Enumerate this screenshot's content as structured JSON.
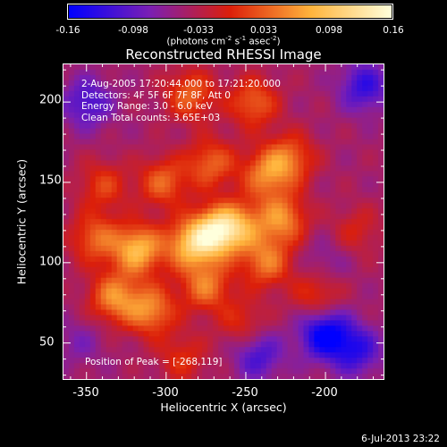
{
  "colorbar": {
    "ticks": [
      "-0.16",
      "-0.098",
      "-0.033",
      "0.033",
      "0.098",
      "0.16"
    ],
    "units_prefix": "(photons cm",
    "units_exp1": "-2",
    "units_mid": " s",
    "units_exp2": "-1",
    "units_mid2": " asec",
    "units_exp3": "-2",
    "units_suffix": ")"
  },
  "chart_data": {
    "type": "heatmap",
    "title": "Reconstructed RHESSI Image",
    "xlabel": "Heliocentric X (arcsec)",
    "ylabel": "Heliocentric Y (arcsec)",
    "xlim": [
      -365,
      -163
    ],
    "ylim": [
      27,
      224
    ],
    "xticks": [
      "-350",
      "-300",
      "-250",
      "-200"
    ],
    "xtick_values": [
      -350,
      -300,
      -250,
      -200
    ],
    "yticks": [
      "50",
      "100",
      "150",
      "200"
    ],
    "ytick_values": [
      50,
      100,
      150,
      200
    ],
    "zlim": [
      -0.16,
      0.16
    ],
    "colormap": [
      "#0000ff",
      "#7a1fb4",
      "#dc1f0a",
      "#ffb43c",
      "#ffffdc"
    ],
    "peak": [
      -268,
      119
    ],
    "sources": [
      {
        "x": -268,
        "y": 119,
        "amp": 0.16
      },
      {
        "x": -285,
        "y": 111,
        "amp": 0.12
      },
      {
        "x": -318,
        "y": 108,
        "amp": 0.13
      },
      {
        "x": -310,
        "y": 70,
        "amp": 0.1
      },
      {
        "x": -333,
        "y": 78,
        "amp": 0.1
      },
      {
        "x": -275,
        "y": 85,
        "amp": 0.09
      },
      {
        "x": -253,
        "y": 123,
        "amp": 0.08
      },
      {
        "x": -227,
        "y": 127,
        "amp": 0.1
      },
      {
        "x": -237,
        "y": 100,
        "amp": 0.09
      },
      {
        "x": -237,
        "y": 155,
        "amp": 0.09
      },
      {
        "x": -222,
        "y": 165,
        "amp": 0.08
      },
      {
        "x": -302,
        "y": 150,
        "amp": 0.08
      },
      {
        "x": -272,
        "y": 162,
        "amp": 0.08
      },
      {
        "x": -285,
        "y": 205,
        "amp": 0.08
      },
      {
        "x": -245,
        "y": 200,
        "amp": 0.08
      },
      {
        "x": -340,
        "y": 148,
        "amp": 0.06
      },
      {
        "x": -345,
        "y": 115,
        "amp": 0.08
      },
      {
        "x": -205,
        "y": 80,
        "amp": 0.06
      },
      {
        "x": -252,
        "y": 62,
        "amp": 0.05
      },
      {
        "x": -180,
        "y": 120,
        "amp": 0.04
      },
      {
        "x": -290,
        "y": 40,
        "amp": 0.05
      },
      {
        "x": -350,
        "y": 200,
        "amp": -0.07
      },
      {
        "x": -175,
        "y": 210,
        "amp": -0.08
      },
      {
        "x": -200,
        "y": 55,
        "amp": -0.12
      },
      {
        "x": -180,
        "y": 45,
        "amp": -0.08
      },
      {
        "x": -242,
        "y": 42,
        "amp": -0.07
      },
      {
        "x": -200,
        "y": 100,
        "amp": -0.03
      },
      {
        "x": -355,
        "y": 50,
        "amp": -0.03
      }
    ],
    "background": -0.045,
    "annotations": [
      "2-Aug-2005 17:20:44.000 to 17:21:20.000",
      "Detectors: 4F 5F 6F 7F 8F, Att 0",
      "Energy Range: 3.0 - 6.0 keV",
      "Clean     Total counts: 3.65E+03"
    ],
    "peak_label": "Position of Peak = [-268,119]"
  },
  "footer": {
    "date": "6-Jul-2013 23:22"
  }
}
